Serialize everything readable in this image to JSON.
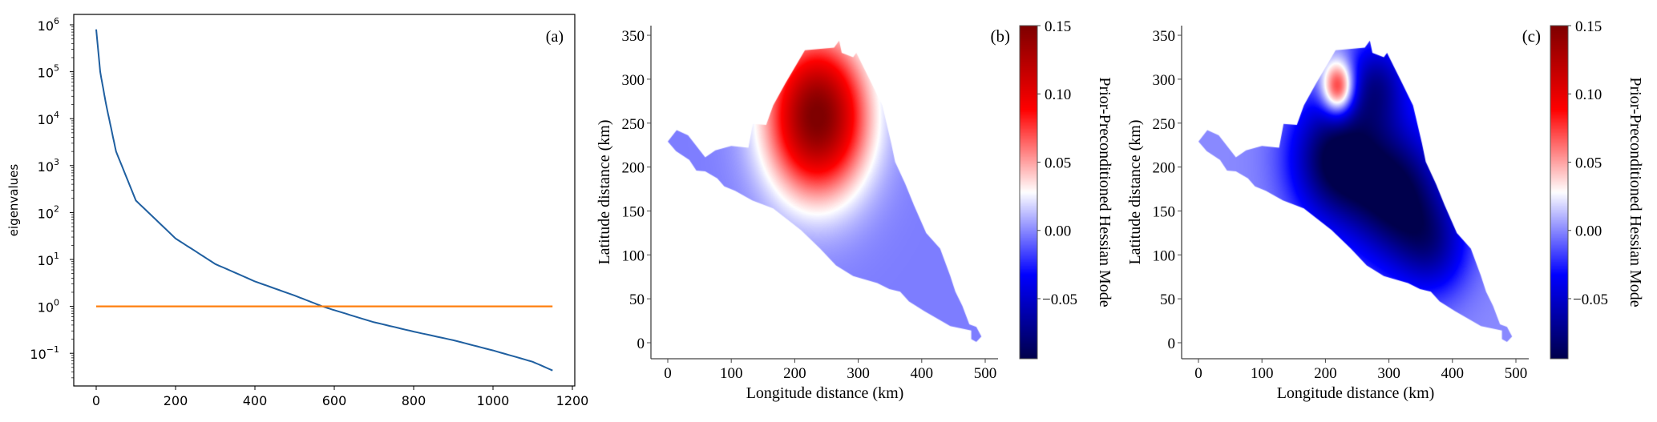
{
  "chart_data": [
    {
      "type": "line",
      "panel_label": "(a)",
      "xlabel": "",
      "ylabel": "eigenvalues",
      "xlim": [
        -55,
        1210
      ],
      "ylim_log10": [
        -1.6,
        6.25
      ],
      "yscale": "log",
      "x_ticks": [
        "0",
        "200",
        "400",
        "600",
        "800",
        "1000",
        "1200"
      ],
      "y_ticks": [
        {
          "base": "10",
          "exp": "6"
        },
        {
          "base": "10",
          "exp": "5"
        },
        {
          "base": "10",
          "exp": "4"
        },
        {
          "base": "10",
          "exp": "3"
        },
        {
          "base": "10",
          "exp": "2"
        },
        {
          "base": "10",
          "exp": "1"
        },
        {
          "base": "10",
          "exp": "0"
        },
        {
          "base": "10",
          "exp": "−1"
        }
      ],
      "grid": false,
      "series": [
        {
          "color": "#1f5fa0",
          "x": [
            0,
            10,
            25,
            50,
            100,
            200,
            300,
            400,
            500,
            570,
            600,
            700,
            800,
            900,
            1000,
            1100,
            1150
          ],
          "y": [
            800000,
            100000,
            20000,
            2000,
            180,
            28,
            8,
            3.4,
            1.7,
            1.0,
            0.83,
            0.46,
            0.29,
            0.19,
            0.115,
            0.066,
            0.043
          ]
        },
        {
          "color": "#ff7f0e",
          "x": [
            0,
            1150
          ],
          "y": [
            1,
            1
          ]
        }
      ]
    },
    {
      "type": "heatmap",
      "panel_label": "(b)",
      "xlabel": "Longitude distance (km)",
      "ylabel": "Latitude distance (km)",
      "xlim": [
        -25,
        520
      ],
      "ylim": [
        -20,
        360
      ],
      "x_ticks": [
        "0",
        "100",
        "200",
        "300",
        "400",
        "500"
      ],
      "y_ticks": [
        "0",
        "50",
        "100",
        "150",
        "200",
        "250",
        "300",
        "350"
      ],
      "colormap": "seismic",
      "colorbar": {
        "label": "Prior-Preconditioned Hessian Mode",
        "range": [
          -0.094,
          0.15
        ],
        "ticks": [
          "0.15",
          "0.10",
          "0.05",
          "0.00",
          "−0.05"
        ]
      },
      "features": [
        {
          "kind": "background",
          "value": -0.003
        },
        {
          "kind": "peak",
          "x": 235,
          "y": 258,
          "value": 0.15
        }
      ]
    },
    {
      "type": "heatmap",
      "panel_label": "(c)",
      "xlabel": "Longitude distance (km)",
      "ylabel": "Latitude distance (km)",
      "xlim": [
        -25,
        520
      ],
      "ylim": [
        -20,
        360
      ],
      "x_ticks": [
        "0",
        "100",
        "200",
        "300",
        "400",
        "500"
      ],
      "y_ticks": [
        "0",
        "50",
        "100",
        "150",
        "200",
        "250",
        "300",
        "350"
      ],
      "colormap": "seismic",
      "colorbar": {
        "label": "Prior-Preconditioned Hessian Mode",
        "range": [
          -0.094,
          0.15
        ],
        "ticks": [
          "0.15",
          "0.10",
          "0.05",
          "0.00",
          "−0.05"
        ]
      },
      "features": [
        {
          "kind": "background",
          "value": 0.0
        },
        {
          "kind": "trough",
          "x": 215,
          "y": 210,
          "value": -0.094
        },
        {
          "kind": "trough",
          "x": 310,
          "y": 170,
          "value": -0.094
        },
        {
          "kind": "peak",
          "x": 220,
          "y": 290,
          "value": 0.02
        }
      ]
    }
  ],
  "domain_outline_km": [
    [
      0,
      229
    ],
    [
      14,
      242
    ],
    [
      32,
      236
    ],
    [
      59,
      211
    ],
    [
      75,
      219
    ],
    [
      100,
      224
    ],
    [
      127,
      222
    ],
    [
      134,
      249
    ],
    [
      155,
      248
    ],
    [
      166,
      270
    ],
    [
      185,
      295
    ],
    [
      216,
      333
    ],
    [
      262,
      336
    ],
    [
      270,
      344
    ],
    [
      274,
      330
    ],
    [
      292,
      325
    ],
    [
      297,
      330
    ],
    [
      319,
      298
    ],
    [
      338,
      270
    ],
    [
      352,
      227
    ],
    [
      358,
      206
    ],
    [
      374,
      181
    ],
    [
      388,
      156
    ],
    [
      407,
      125
    ],
    [
      429,
      107
    ],
    [
      445,
      76
    ],
    [
      453,
      58
    ],
    [
      464,
      42
    ],
    [
      475,
      21
    ],
    [
      486,
      18
    ],
    [
      494,
      7
    ],
    [
      486,
      1
    ],
    [
      478,
      4
    ],
    [
      478,
      14
    ],
    [
      445,
      19
    ],
    [
      404,
      36
    ],
    [
      380,
      47
    ],
    [
      366,
      58
    ],
    [
      349,
      61
    ],
    [
      330,
      68
    ],
    [
      292,
      76
    ],
    [
      265,
      88
    ],
    [
      240,
      107
    ],
    [
      210,
      128
    ],
    [
      166,
      153
    ],
    [
      133,
      162
    ],
    [
      106,
      173
    ],
    [
      89,
      178
    ],
    [
      78,
      187
    ],
    [
      59,
      195
    ],
    [
      45,
      196
    ],
    [
      34,
      208
    ],
    [
      13,
      218
    ]
  ]
}
